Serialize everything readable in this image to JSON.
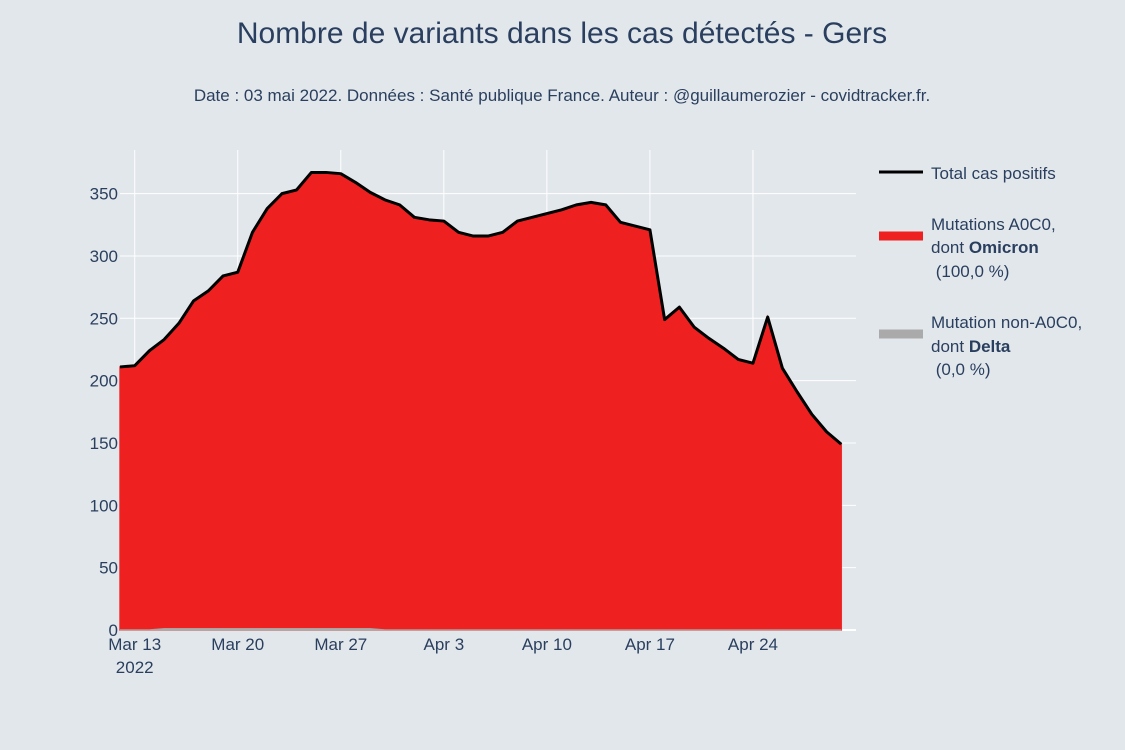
{
  "chart_data": {
    "type": "area",
    "title": "Nombre de variants dans les cas détectés - Gers",
    "subtitle": "Date : 03 mai 2022. Données : Santé publique France. Auteur : @guillaumerozier - covidtracker.fr.",
    "xlabel": "",
    "ylabel": "",
    "x_start": "2022-03-12",
    "x_end": "2022-05-01",
    "xlim": [
      "2022-03-12",
      "2022-05-01"
    ],
    "ylim": [
      0,
      385
    ],
    "y_ticks": [
      0,
      50,
      100,
      150,
      200,
      250,
      300,
      350
    ],
    "x_ticks": [
      {
        "date": "2022-03-13",
        "label": "Mar 13",
        "sublabel": "2022"
      },
      {
        "date": "2022-03-20",
        "label": "Mar 20",
        "sublabel": ""
      },
      {
        "date": "2022-03-27",
        "label": "Mar 27",
        "sublabel": ""
      },
      {
        "date": "2022-04-03",
        "label": "Apr 3",
        "sublabel": ""
      },
      {
        "date": "2022-04-10",
        "label": "Apr 10",
        "sublabel": ""
      },
      {
        "date": "2022-04-17",
        "label": "Apr 17",
        "sublabel": ""
      },
      {
        "date": "2022-04-24",
        "label": "Apr 24",
        "sublabel": ""
      }
    ],
    "grid": true,
    "legend_position": "right",
    "series": [
      {
        "name": "Total cas positifs",
        "kind": "line",
        "color": "#000000",
        "values": [
          211,
          212,
          224,
          233,
          246,
          264,
          272,
          284,
          287,
          319,
          338,
          350,
          353,
          367,
          367,
          366,
          359,
          351,
          345,
          341,
          331,
          329,
          328,
          319,
          316,
          316,
          319,
          328,
          331,
          334,
          337,
          341,
          343,
          341,
          327,
          324,
          321,
          249,
          259,
          243,
          234,
          226,
          217,
          214,
          251,
          210,
          191,
          173,
          159,
          149
        ]
      },
      {
        "name": "Mutations A0C0, dont Omicron (100,0 %)",
        "label_line1": "Mutations A0C0,",
        "label_line2_prefix": "dont ",
        "label_line2_bold": "Omicron",
        "label_line3": " (100,0 %)",
        "kind": "area",
        "color": "#ee2020",
        "values": [
          211,
          212,
          224,
          233,
          246,
          264,
          272,
          284,
          287,
          319,
          338,
          350,
          353,
          367,
          367,
          366,
          359,
          351,
          345,
          341,
          331,
          329,
          328,
          319,
          316,
          316,
          319,
          328,
          331,
          334,
          337,
          341,
          343,
          341,
          327,
          324,
          321,
          249,
          259,
          243,
          234,
          226,
          217,
          214,
          251,
          210,
          191,
          173,
          159,
          149
        ]
      },
      {
        "name": "Mutation non-A0C0, dont Delta (0,0 %)",
        "label_line1": "Mutation non-A0C0,",
        "label_line2_prefix": "dont ",
        "label_line2_bold": "Delta",
        "label_line3": " (0,0 %)",
        "kind": "area",
        "color": "#aaaaaa",
        "values": [
          0,
          0,
          0,
          1,
          1,
          1,
          1,
          1,
          1,
          1,
          1,
          1,
          1,
          1,
          1,
          1,
          1,
          1,
          0,
          0,
          0,
          0,
          0,
          0,
          0,
          0,
          0,
          0,
          0,
          0,
          0,
          0,
          0,
          0,
          0,
          0,
          0,
          0,
          0,
          0,
          0,
          0,
          0,
          0,
          0,
          0,
          0,
          0,
          0,
          0
        ]
      }
    ]
  }
}
